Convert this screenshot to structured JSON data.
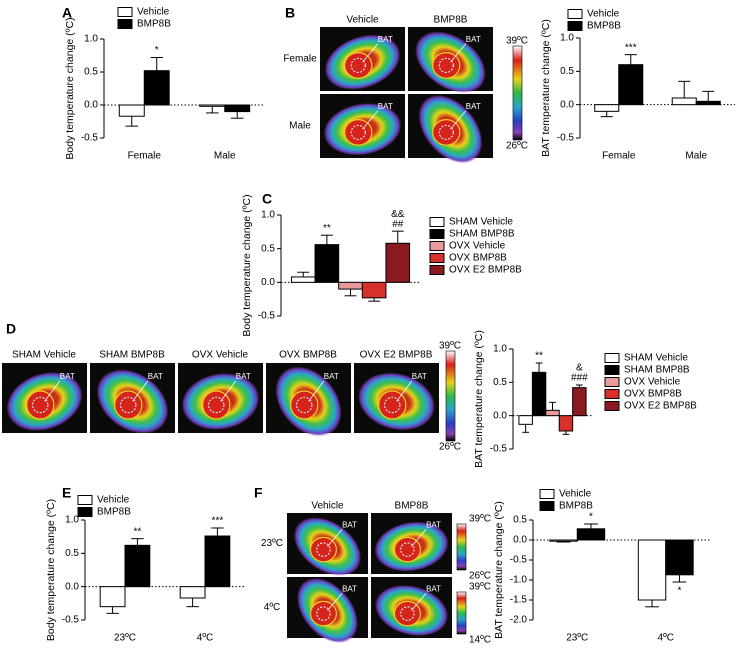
{
  "chart_data": [
    {
      "type": "bar",
      "panel": "A",
      "y_label": "Body temperature change (ºC)",
      "categories": [
        "Female",
        "Male"
      ],
      "series": [
        {
          "name": "Vehicle",
          "color": "#ffffff",
          "values": [
            -0.17,
            -0.02
          ],
          "errors": [
            0.15,
            0.1
          ],
          "annotations": [
            null,
            null
          ]
        },
        {
          "name": "BMP8B",
          "color": "#000000",
          "values": [
            0.52,
            -0.1
          ],
          "errors": [
            0.2,
            0.1
          ],
          "annotations": [
            [
              "*"
            ],
            null
          ]
        }
      ],
      "ylim": [
        -0.5,
        1.0
      ],
      "yticks": [
        -0.5,
        {
          "value": 0,
          "label": "0.0"
        },
        0.5,
        {
          "value": 1,
          "label": "1.0"
        }
      ]
    },
    {
      "type": "bar",
      "y_label": "BAT temperature change (ºC)",
      "categories": [
        "Female",
        "Male"
      ],
      "series": [
        {
          "name": "Vehicle",
          "color": "#ffffff",
          "values": [
            -0.1,
            0.1
          ],
          "errors": [
            0.08,
            0.25
          ],
          "annotations": [
            null,
            null
          ]
        },
        {
          "name": "BMP8B",
          "color": "#000000",
          "values": [
            0.6,
            0.05
          ],
          "errors": [
            0.15,
            0.15
          ],
          "annotations": [
            [
              "***"
            ],
            null
          ]
        }
      ],
      "ylim": [
        -0.5,
        1.0
      ],
      "yticks": [
        -0.5,
        {
          "value": 0,
          "label": "0.0"
        },
        0.5,
        {
          "value": 1,
          "label": "1.0"
        }
      ]
    },
    {
      "type": "bar",
      "panel": "C",
      "y_label": "Body temperature change (ºC)",
      "categories": [
        null
      ],
      "series": [
        {
          "name": "SHAM Vehicle",
          "color": "#ffffff",
          "values": [
            0.08
          ],
          "errors": [
            0.07
          ],
          "annotations": [
            null
          ]
        },
        {
          "name": "SHAM BMP8B",
          "color": "#000000",
          "values": [
            0.56
          ],
          "errors": [
            0.14
          ],
          "annotations": [
            [
              "**"
            ]
          ]
        },
        {
          "name": "OVX Vehicle",
          "color": "#e89a9a",
          "values": [
            -0.1
          ],
          "errors": [
            0.1
          ],
          "annotations": [
            null
          ]
        },
        {
          "name": "OVX BMP8B",
          "color": "#d8312c",
          "values": [
            -0.23
          ],
          "errors": [
            0.05
          ],
          "annotations": [
            null
          ]
        },
        {
          "name": "OVX E2 BMP8B",
          "color": "#8a1a1f",
          "values": [
            0.58
          ],
          "errors": [
            0.18
          ],
          "annotations": [
            [
              "&&",
              "##"
            ]
          ]
        }
      ],
      "ylim": [
        -0.5,
        1.0
      ],
      "yticks": [
        -0.5,
        {
          "value": 0,
          "label": "0.0"
        },
        0.5,
        {
          "value": 1,
          "label": "1.0"
        }
      ]
    },
    {
      "type": "bar",
      "y_label": "BAT temperature change (ºC)",
      "categories": [
        null
      ],
      "series": [
        {
          "name": "SHAM Vehicle",
          "color": "#ffffff",
          "values": [
            -0.13
          ],
          "errors": [
            0.12
          ],
          "annotations": [
            null
          ]
        },
        {
          "name": "SHAM BMP8B",
          "color": "#000000",
          "values": [
            0.65
          ],
          "errors": [
            0.14
          ],
          "annotations": [
            [
              "**"
            ]
          ]
        },
        {
          "name": "OVX Vehicle",
          "color": "#e89a9a",
          "values": [
            0.08
          ],
          "errors": [
            0.12
          ],
          "annotations": [
            null
          ]
        },
        {
          "name": "OVX BMP8B",
          "color": "#d8312c",
          "values": [
            -0.23
          ],
          "errors": [
            0.05
          ],
          "annotations": [
            null
          ]
        },
        {
          "name": "OVX E2 BMP8B",
          "color": "#8a1a1f",
          "values": [
            0.42
          ],
          "errors": [
            0.04
          ],
          "annotations": [
            [
              "&",
              "###"
            ]
          ]
        }
      ],
      "ylim": [
        -0.5,
        1.0
      ],
      "yticks": [
        -0.5,
        {
          "value": 0,
          "label": "0.0"
        },
        0.5,
        {
          "value": 1,
          "label": "1.0"
        }
      ]
    },
    {
      "type": "bar",
      "panel": "E",
      "y_label": "Body temperature change (ºC)",
      "categories": [
        "23ºC",
        "4ºC"
      ],
      "series": [
        {
          "name": "Vehicle",
          "color": "#ffffff",
          "values": [
            -0.3,
            -0.17
          ],
          "errors": [
            0.1,
            0.13
          ],
          "annotations": [
            null,
            null
          ]
        },
        {
          "name": "BMP8B",
          "color": "#000000",
          "values": [
            0.62,
            0.76
          ],
          "errors": [
            0.1,
            0.12
          ],
          "annotations": [
            [
              "**"
            ],
            [
              "***"
            ]
          ]
        }
      ],
      "ylim": [
        -0.5,
        1.0
      ],
      "yticks": [
        -0.5,
        {
          "value": 0,
          "label": "0.0"
        },
        0.5,
        {
          "value": 1,
          "label": "1.0"
        }
      ]
    },
    {
      "type": "bar",
      "y_label": "BAT temperature change (ºC)",
      "categories": [
        "23ºC",
        "4ºC"
      ],
      "series": [
        {
          "name": "Vehicle",
          "color": "#ffffff",
          "values": [
            -0.03,
            -1.5
          ],
          "errors": [
            0.02,
            0.17
          ],
          "annotations": [
            null,
            null
          ]
        },
        {
          "name": "BMP8B",
          "color": "#000000",
          "values": [
            0.28,
            -0.87
          ],
          "errors": [
            0.12,
            0.18
          ],
          "annotations": [
            [
              "*"
            ],
            [
              "*"
            ]
          ]
        }
      ],
      "ylim": [
        -2.0,
        0.5
      ],
      "yticks": [
        {
          "value": -2,
          "label": "-2.0"
        },
        -1.5,
        {
          "value": -1,
          "label": "-1.0"
        },
        -0.5,
        {
          "value": 0,
          "label": "0.0"
        },
        0.5
      ]
    }
  ],
  "images": [
    {
      "panel": "B",
      "columns": [
        "Vehicle",
        "BMP8B"
      ],
      "rows": [
        "Female",
        "Male"
      ],
      "region_label": "BAT",
      "scales": [
        [
          "39ºC",
          "26ºC"
        ]
      ]
    },
    {
      "panel": "D",
      "columns": [
        "SHAM Vehicle",
        "SHAM BMP8B",
        "OVX Vehicle",
        "OVX BMP8B",
        "OVX E2 BMP8B"
      ],
      "rows": [],
      "region_label": "BAT",
      "scales": [
        [
          "39ºC",
          "26ºC"
        ]
      ]
    },
    {
      "panel": "F",
      "columns": [
        "Vehicle",
        "BMP8B"
      ],
      "rows": [
        "23ºC",
        "4ºC"
      ],
      "region_label": "BAT",
      "scales": [
        [
          "39ºC",
          "26ºC"
        ],
        [
          "39ºC",
          "14ºC"
        ]
      ]
    }
  ]
}
